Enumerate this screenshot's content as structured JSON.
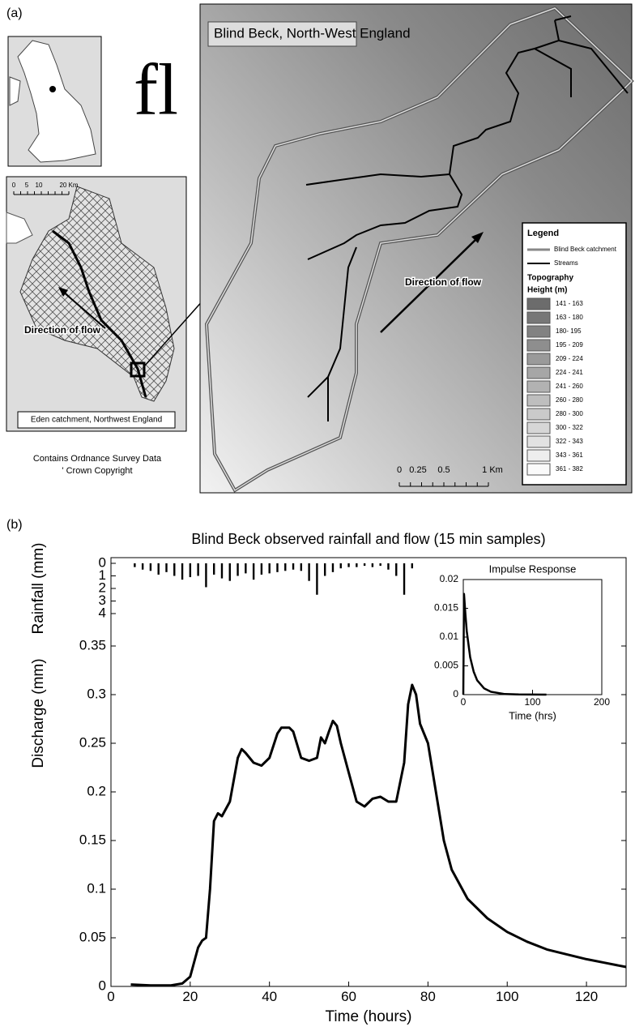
{
  "panel_a": {
    "label": "(a)",
    "glyph": "fl",
    "map_title": "Blind Beck, North-West England",
    "direction": "Direction of flow",
    "scale": [
      "0",
      "0.25",
      "0.5",
      "1 Km"
    ],
    "legend": {
      "title": "Legend",
      "catchment": "Blind Beck catchment",
      "streams": "Streams",
      "topography": "Topography",
      "height": "Height (m)",
      "classes": [
        {
          "label": "141 - 163",
          "color": "#6c6c6c"
        },
        {
          "label": "163 - 180",
          "color": "#777777"
        },
        {
          "label": "180- 195",
          "color": "#828282"
        },
        {
          "label": "195 - 209",
          "color": "#8e8e8e"
        },
        {
          "label": "209 - 224",
          "color": "#9a9a9a"
        },
        {
          "label": "224 - 241",
          "color": "#a6a6a6"
        },
        {
          "label": "241 - 260",
          "color": "#b2b2b2"
        },
        {
          "label": "260 - 280",
          "color": "#bebebe"
        },
        {
          "label": "280 - 300",
          "color": "#cacaca"
        },
        {
          "label": "300 - 322",
          "color": "#d6d6d6"
        },
        {
          "label": "322 - 343",
          "color": "#e2e2e2"
        },
        {
          "label": "343 - 361",
          "color": "#eeeeee"
        },
        {
          "label": "361 - 382",
          "color": "#fafafa"
        }
      ]
    },
    "eden": {
      "scale": [
        "0",
        "5",
        "10",
        "20 Km"
      ],
      "direction": "Direction of flow",
      "caption": "Eden catchment, Northwest England"
    },
    "credit": [
      "Contains Ordnance Survey Data",
      "' Crown Copyright"
    ]
  },
  "panel_b": {
    "label": "(b)"
  },
  "chart_data": [
    {
      "type": "line",
      "title": "Blind Beck observed rainfall and flow (15 min samples)",
      "xlabel": "Time (hours)",
      "ylabel": "Discharge (mm)",
      "y2label": "Rainfall (mm)",
      "xlim": [
        0,
        130
      ],
      "xticks": [
        0,
        20,
        40,
        60,
        80,
        100,
        120
      ],
      "ylim": [
        0,
        0.35
      ],
      "yticks": [
        0,
        0.05,
        0.1,
        0.15,
        0.2,
        0.25,
        0.3,
        0.35
      ],
      "y2lim": [
        0,
        4
      ],
      "y2ticks": [
        0,
        1,
        2,
        3,
        4
      ],
      "series": [
        {
          "type": "line",
          "color": "#000000",
          "x": [
            5,
            10,
            15,
            18,
            20,
            21,
            22,
            23,
            24,
            25,
            26,
            27,
            28,
            30,
            32,
            33,
            34,
            36,
            38,
            40,
            42,
            43,
            45,
            46,
            48,
            50,
            52,
            53,
            54,
            55,
            56,
            57,
            58,
            60,
            62,
            64,
            66,
            68,
            70,
            72,
            74,
            75,
            76,
            77,
            78,
            80,
            82,
            84,
            86,
            90,
            95,
            100,
            105,
            110,
            115,
            120,
            125,
            130
          ],
          "values": [
            0.002,
            0.001,
            0.001,
            0.003,
            0.01,
            0.025,
            0.04,
            0.047,
            0.05,
            0.1,
            0.17,
            0.178,
            0.175,
            0.19,
            0.235,
            0.244,
            0.24,
            0.23,
            0.227,
            0.235,
            0.26,
            0.266,
            0.266,
            0.262,
            0.235,
            0.232,
            0.235,
            0.256,
            0.25,
            0.262,
            0.273,
            0.268,
            0.25,
            0.22,
            0.19,
            0.185,
            0.193,
            0.195,
            0.19,
            0.19,
            0.23,
            0.29,
            0.31,
            0.3,
            0.27,
            0.25,
            0.2,
            0.15,
            0.12,
            0.09,
            0.07,
            0.056,
            0.046,
            0.038,
            0.033,
            0.028,
            0.024,
            0.02
          ]
        },
        {
          "type": "bar",
          "axis": "y2",
          "color": "#000000",
          "x": [
            6,
            8,
            10,
            12,
            14,
            16,
            18,
            20,
            22,
            24,
            26,
            28,
            30,
            32,
            34,
            36,
            38,
            40,
            42,
            44,
            46,
            48,
            50,
            52,
            54,
            56,
            58,
            60,
            62,
            64,
            66,
            68,
            70,
            72,
            74,
            76
          ],
          "values": [
            0.3,
            0.5,
            0.6,
            0.9,
            0.7,
            1.0,
            1.3,
            1.1,
            1.0,
            1.9,
            0.9,
            1.2,
            1.4,
            1.0,
            0.8,
            1.3,
            0.9,
            0.8,
            0.7,
            0.6,
            0.5,
            0.6,
            1.4,
            2.5,
            1.0,
            0.7,
            0.4,
            0.3,
            0.3,
            0.2,
            0.3,
            0.2,
            0.5,
            1.0,
            2.5,
            0.4
          ]
        }
      ]
    },
    {
      "type": "line",
      "title": "Impulse Response",
      "xlabel": "Time (hrs)",
      "color": "#000000",
      "xlim": [
        0,
        200
      ],
      "xticks": [
        0,
        100,
        200
      ],
      "ylim": [
        0,
        0.02
      ],
      "yticks": [
        0,
        0.005,
        0.01,
        0.015,
        0.02
      ],
      "x": [
        0,
        1,
        3,
        5,
        10,
        15,
        20,
        30,
        40,
        60,
        80,
        120
      ],
      "values": [
        0,
        0.0175,
        0.014,
        0.011,
        0.0065,
        0.004,
        0.0025,
        0.0011,
        0.0005,
        0.0001,
        3e-05,
        0
      ]
    }
  ]
}
